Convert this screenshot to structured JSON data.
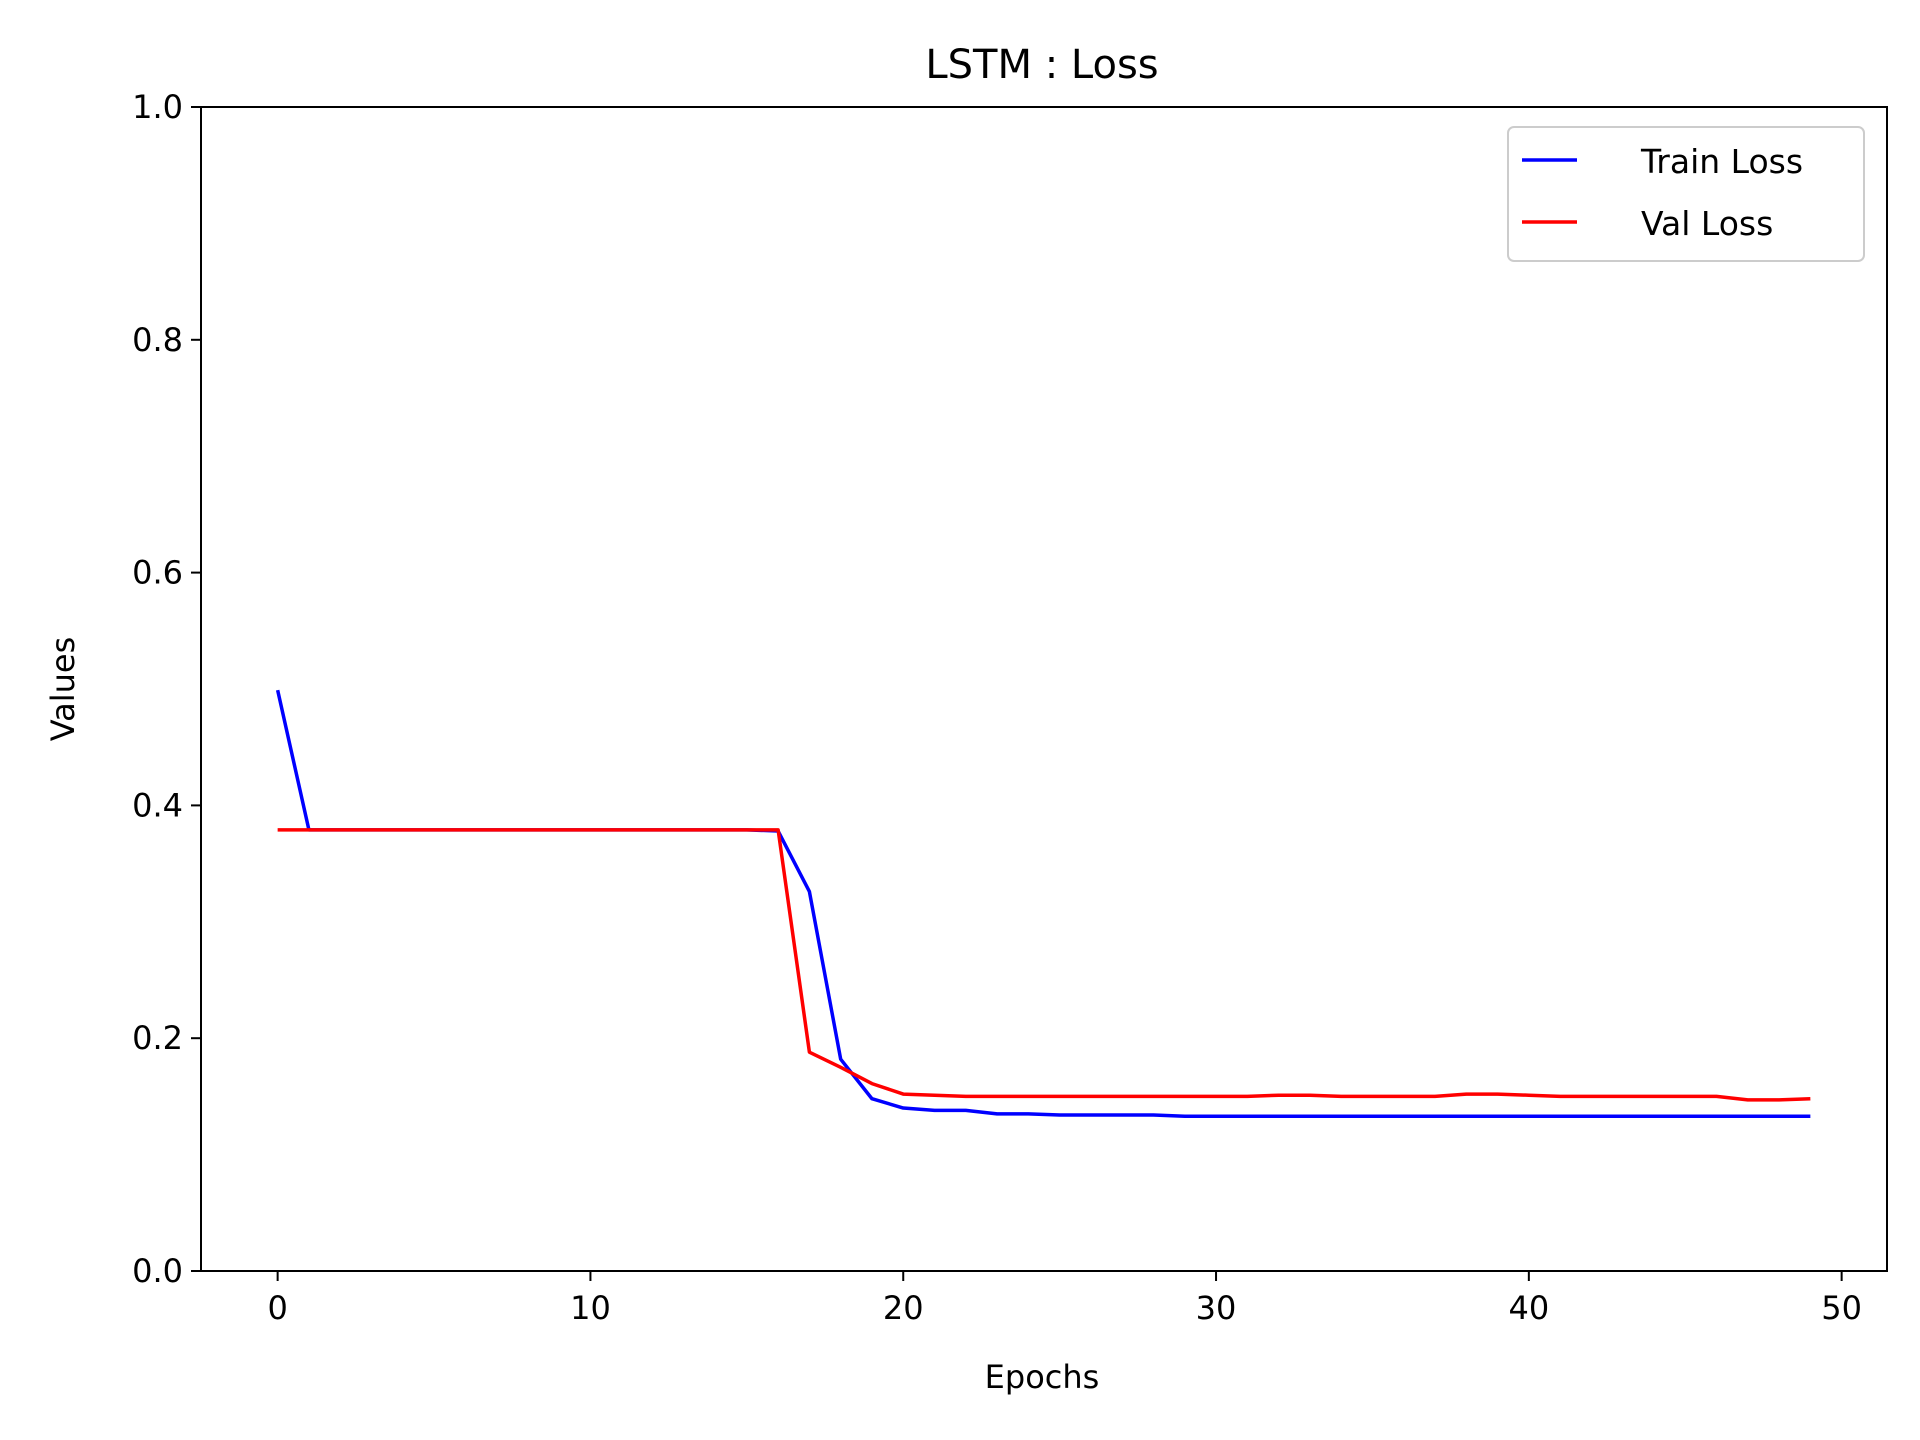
{
  "chart_data": {
    "type": "line",
    "title": "LSTM : Loss",
    "xlabel": "Epochs",
    "ylabel": "Values",
    "xlim": [
      -2.45,
      51.45
    ],
    "ylim": [
      0,
      1
    ],
    "xticks": [
      0,
      10,
      20,
      30,
      40,
      50
    ],
    "yticks": [
      0.0,
      0.2,
      0.4,
      0.6,
      0.8,
      1.0
    ],
    "xtick_labels": [
      "0",
      "10",
      "20",
      "30",
      "40",
      "50"
    ],
    "ytick_labels": [
      "0.0",
      "0.2",
      "0.4",
      "0.6",
      "0.8",
      "1.0"
    ],
    "grid": false,
    "legend_position": "top-right",
    "x": [
      0,
      1,
      2,
      3,
      4,
      5,
      6,
      7,
      8,
      9,
      10,
      11,
      12,
      13,
      14,
      15,
      16,
      17,
      18,
      19,
      20,
      21,
      22,
      23,
      24,
      25,
      26,
      27,
      28,
      29,
      30,
      31,
      32,
      33,
      34,
      35,
      36,
      37,
      38,
      39,
      40,
      41,
      42,
      43,
      44,
      45,
      46,
      47,
      48,
      49
    ],
    "series": [
      {
        "name": "Train Loss",
        "color": "#0000ff",
        "values": [
          0.499,
          0.379,
          0.379,
          0.379,
          0.379,
          0.379,
          0.379,
          0.379,
          0.379,
          0.379,
          0.379,
          0.379,
          0.379,
          0.379,
          0.379,
          0.379,
          0.378,
          0.326,
          0.182,
          0.148,
          0.14,
          0.138,
          0.138,
          0.135,
          0.135,
          0.134,
          0.134,
          0.134,
          0.134,
          0.133,
          0.133,
          0.133,
          0.133,
          0.133,
          0.133,
          0.133,
          0.133,
          0.133,
          0.133,
          0.133,
          0.133,
          0.133,
          0.133,
          0.133,
          0.133,
          0.133,
          0.133,
          0.133,
          0.133,
          0.133
        ]
      },
      {
        "name": "Val Loss",
        "color": "#ff0000",
        "values": [
          0.379,
          0.379,
          0.379,
          0.379,
          0.379,
          0.379,
          0.379,
          0.379,
          0.379,
          0.379,
          0.379,
          0.379,
          0.379,
          0.379,
          0.379,
          0.379,
          0.379,
          0.188,
          0.175,
          0.161,
          0.152,
          0.151,
          0.15,
          0.15,
          0.15,
          0.15,
          0.15,
          0.15,
          0.15,
          0.15,
          0.15,
          0.15,
          0.151,
          0.151,
          0.15,
          0.15,
          0.15,
          0.15,
          0.152,
          0.152,
          0.151,
          0.15,
          0.15,
          0.15,
          0.15,
          0.15,
          0.15,
          0.147,
          0.147,
          0.148
        ]
      }
    ]
  }
}
